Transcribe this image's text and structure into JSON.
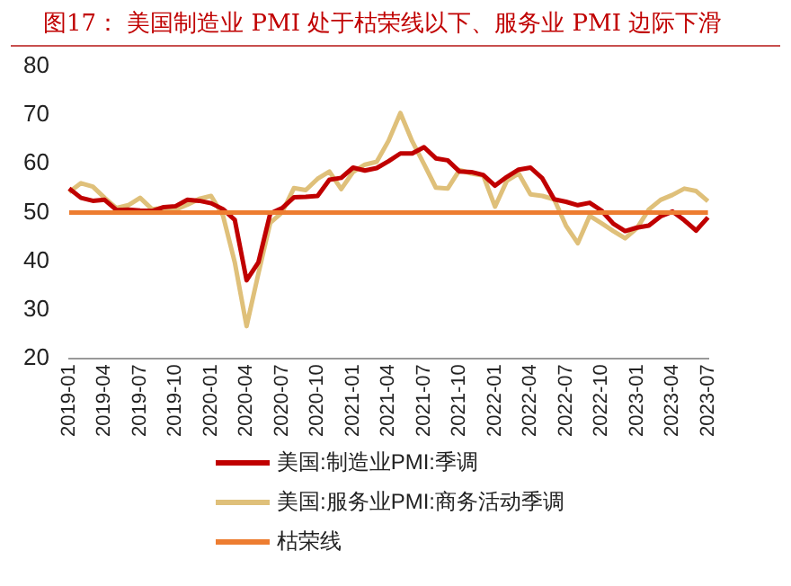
{
  "chart_data": {
    "type": "line",
    "title": "图17：  美国制造业 PMI 处于枯荣线以下、服务业 PMI 边际下滑",
    "categories": [
      "2019-01",
      null,
      null,
      "2019-04",
      null,
      null,
      "2019-07",
      null,
      null,
      "2019-10",
      null,
      null,
      "2020-01",
      null,
      null,
      "2020-04",
      null,
      null,
      "2020-07",
      null,
      null,
      "2020-10",
      null,
      null,
      "2021-01",
      null,
      null,
      "2021-04",
      null,
      null,
      "2021-07",
      null,
      null,
      "2021-10",
      null,
      null,
      "2022-01",
      null,
      null,
      "2022-04",
      null,
      null,
      "2022-07",
      null,
      null,
      "2022-10",
      null,
      null,
      "2023-01",
      null,
      null,
      "2023-04",
      null,
      null,
      "2023-07"
    ],
    "series": [
      {
        "name": "美国:制造业PMI:季调",
        "color": "#c00000",
        "values": [
          54.9,
          53.0,
          52.4,
          52.6,
          50.5,
          50.6,
          50.4,
          50.3,
          51.1,
          51.3,
          52.6,
          52.4,
          51.9,
          50.7,
          48.5,
          36.1,
          39.8,
          49.8,
          50.9,
          53.1,
          53.2,
          53.4,
          56.7,
          57.1,
          59.2,
          58.6,
          59.1,
          60.5,
          62.1,
          62.1,
          63.4,
          61.1,
          60.7,
          58.4,
          58.3,
          57.7,
          55.5,
          57.3,
          58.8,
          59.2,
          57.0,
          52.7,
          52.2,
          51.5,
          52.0,
          50.4,
          47.7,
          46.2,
          46.9,
          47.3,
          49.2,
          50.2,
          48.4,
          46.3,
          49.0
        ]
      },
      {
        "name": "美国:服务业PMI:商务活动季调",
        "color": "#dfc07a",
        "values": [
          54.2,
          56.0,
          55.3,
          53.0,
          50.9,
          51.5,
          53.0,
          50.7,
          50.9,
          50.6,
          51.6,
          52.8,
          53.4,
          49.4,
          39.8,
          26.7,
          37.5,
          47.9,
          50.0,
          55.0,
          54.6,
          56.9,
          58.4,
          54.8,
          58.3,
          59.8,
          60.4,
          64.7,
          70.4,
          64.6,
          59.9,
          55.1,
          54.9,
          58.7,
          58.0,
          57.6,
          51.2,
          56.5,
          58.0,
          53.7,
          53.4,
          52.7,
          47.3,
          43.7,
          49.3,
          47.8,
          46.2,
          44.7,
          46.8,
          50.6,
          52.6,
          53.6,
          54.9,
          54.4,
          52.3
        ]
      }
    ],
    "ref_lines": [
      {
        "axis": "y",
        "value": 50,
        "label": "枯荣线",
        "color": "#ed7d31"
      }
    ],
    "ylim": [
      20,
      80
    ],
    "yticks": [
      20,
      30,
      40,
      50,
      60,
      70,
      80
    ],
    "grid": false,
    "legend": "bottom",
    "marker": "none",
    "line_style": "solid"
  }
}
